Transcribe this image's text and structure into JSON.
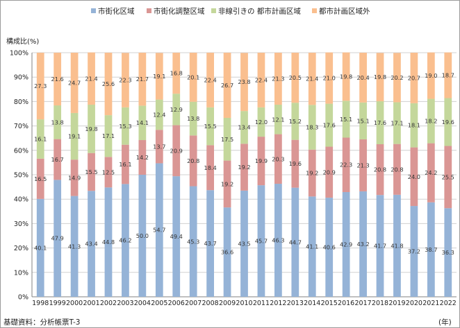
{
  "chart_data": {
    "type": "bar",
    "stacked": true,
    "title": "",
    "ylabel": "構成比(%)",
    "xlabel": "(年)",
    "ylim": [
      0,
      100
    ],
    "ytick_suffix": "%",
    "grid": true,
    "legend_position": "top-center",
    "categories": [
      "1998",
      "1999",
      "2000",
      "2001",
      "2002",
      "2003",
      "2004",
      "2005",
      "2006",
      "2007",
      "2008",
      "2009",
      "2010",
      "2011",
      "2012",
      "2013",
      "2014",
      "2015",
      "2016",
      "2017",
      "2018",
      "2019",
      "2020",
      "2021",
      "2022"
    ],
    "series": [
      {
        "name": "市街化区域",
        "color": "#95b3d7",
        "values": [
          40.1,
          47.9,
          41.3,
          43.4,
          44.8,
          46.2,
          50.0,
          54.7,
          49.4,
          45.3,
          43.7,
          36.6,
          43.5,
          45.7,
          46.3,
          44.7,
          41.1,
          40.6,
          42.9,
          43.2,
          41.7,
          41.8,
          37.2,
          38.7,
          36.3
        ]
      },
      {
        "name": "市街化調整区域",
        "color": "#da9694",
        "values": [
          16.5,
          16.7,
          14.9,
          15.5,
          12.5,
          16.1,
          14.2,
          13.7,
          20.9,
          20.8,
          18.4,
          19.2,
          19.2,
          19.9,
          20.3,
          19.6,
          19.2,
          20.9,
          22.3,
          21.3,
          20.8,
          20.8,
          24.0,
          24.2,
          25.5
        ]
      },
      {
        "name": "非線引きの 都市計画区域",
        "color": "#c4d79b",
        "values": [
          16.1,
          13.8,
          19.1,
          19.8,
          17.1,
          15.3,
          14.1,
          12.4,
          12.9,
          13.8,
          15.5,
          17.5,
          13.4,
          12.0,
          12.1,
          15.2,
          18.3,
          17.6,
          15.1,
          15.1,
          17.6,
          17.1,
          18.1,
          18.2,
          19.6
        ]
      },
      {
        "name": "都市計画区域外",
        "color": "#fabf8f",
        "values": [
          27.3,
          21.6,
          24.7,
          21.4,
          25.6,
          22.3,
          21.7,
          19.1,
          16.8,
          20.1,
          22.4,
          26.7,
          23.8,
          22.4,
          21.3,
          20.5,
          21.4,
          21.0,
          19.8,
          20.4,
          19.8,
          20.2,
          20.7,
          19.0,
          18.7
        ]
      }
    ]
  },
  "source_note": "基礎資料：分析帳票T-3"
}
